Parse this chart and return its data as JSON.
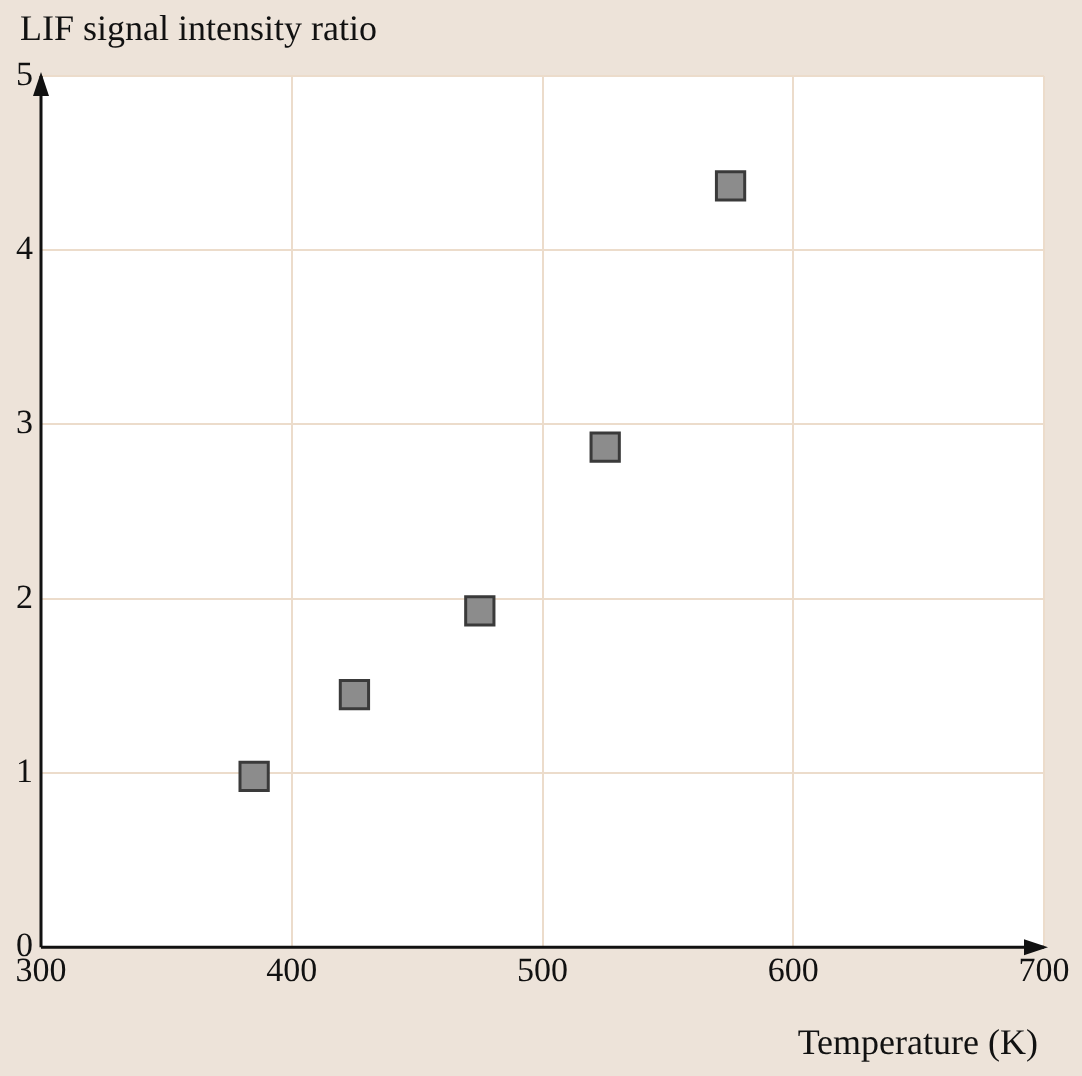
{
  "chart_data": {
    "type": "scatter",
    "xlabel": "Temperature (K)",
    "ylabel": "LIF signal intensity ratio",
    "x": [
      385,
      425,
      475,
      525,
      575
    ],
    "values": [
      0.98,
      1.45,
      1.93,
      2.87,
      4.37
    ],
    "color": "#8c8c8c",
    "marker": "square",
    "xlim": [
      300,
      700
    ],
    "xticks": [
      300,
      400,
      500,
      600,
      700
    ],
    "ylim": [
      0,
      5
    ],
    "yticks": [
      0,
      1,
      2,
      3,
      4,
      5
    ],
    "grid": true,
    "legend": false
  }
}
